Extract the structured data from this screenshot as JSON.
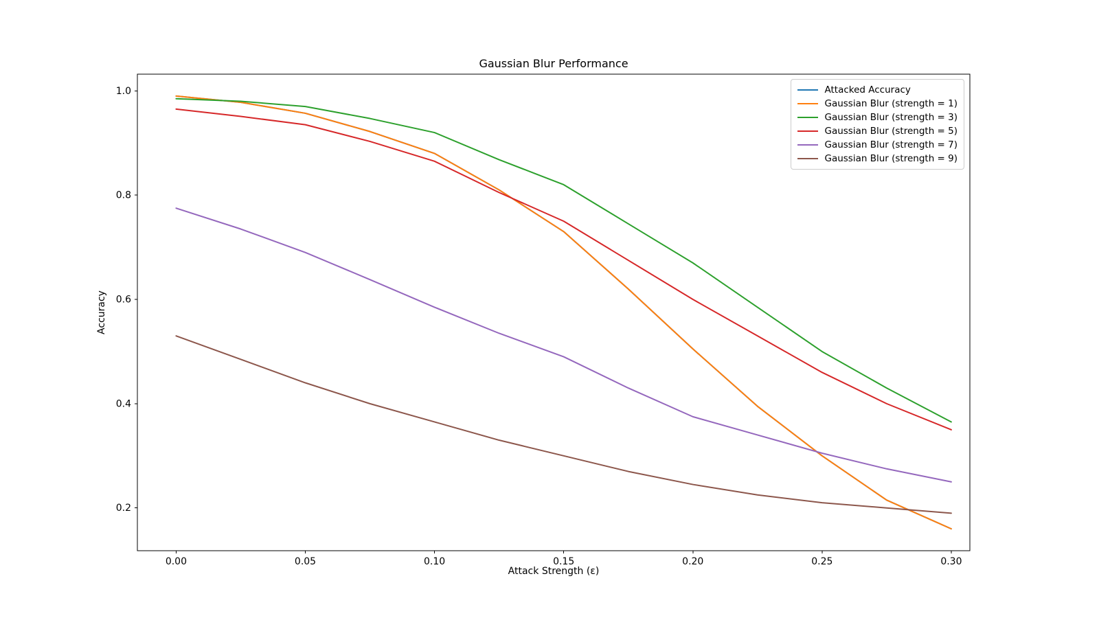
{
  "chart_data": {
    "type": "line",
    "title": "Gaussian Blur Performance",
    "xlabel": "Attack Strength (ε)",
    "ylabel": "Accuracy",
    "grid": false,
    "legend_position": "upper right",
    "xlim": [
      -0.015,
      0.3072
    ],
    "ylim": [
      0.118,
      1.032
    ],
    "xticks": {
      "values": [
        0.0,
        0.05,
        0.1,
        0.15,
        0.2,
        0.25,
        0.3
      ],
      "labels": [
        "0.00",
        "0.05",
        "0.10",
        "0.15",
        "0.20",
        "0.25",
        "0.30"
      ]
    },
    "yticks": {
      "values": [
        0.2,
        0.4,
        0.6,
        0.8,
        1.0
      ],
      "labels": [
        "0.2",
        "0.4",
        "0.6",
        "0.8",
        "1.0"
      ]
    },
    "x": [
      0.0,
      0.025,
      0.05,
      0.075,
      0.1,
      0.125,
      0.15,
      0.175,
      0.2,
      0.225,
      0.25,
      0.275,
      0.3
    ],
    "series": [
      {
        "name": "Attacked Accuracy",
        "color": "#1f77b4",
        "values": [
          0.99,
          0.978,
          0.957,
          0.922,
          0.88,
          0.81,
          0.73,
          0.62,
          0.505,
          0.395,
          0.3,
          0.215,
          0.16
        ]
      },
      {
        "name": "Gaussian Blur (strength = 1)",
        "color": "#ff7f0e",
        "values": [
          0.99,
          0.978,
          0.957,
          0.922,
          0.88,
          0.81,
          0.73,
          0.62,
          0.505,
          0.395,
          0.3,
          0.215,
          0.16
        ]
      },
      {
        "name": "Gaussian Blur (strength = 3)",
        "color": "#2ca02c",
        "values": [
          0.985,
          0.98,
          0.97,
          0.947,
          0.92,
          0.868,
          0.82,
          0.745,
          0.67,
          0.585,
          0.5,
          0.43,
          0.365
        ]
      },
      {
        "name": "Gaussian Blur (strength = 5)",
        "color": "#d62728",
        "values": [
          0.965,
          0.951,
          0.935,
          0.903,
          0.865,
          0.805,
          0.75,
          0.675,
          0.6,
          0.53,
          0.46,
          0.4,
          0.35
        ]
      },
      {
        "name": "Gaussian Blur (strength = 7)",
        "color": "#9467bd",
        "values": [
          0.775,
          0.735,
          0.69,
          0.638,
          0.585,
          0.535,
          0.49,
          0.43,
          0.375,
          0.34,
          0.305,
          0.275,
          0.25
        ]
      },
      {
        "name": "Gaussian Blur (strength = 9)",
        "color": "#8c564b",
        "values": [
          0.53,
          0.485,
          0.44,
          0.4,
          0.365,
          0.33,
          0.3,
          0.27,
          0.245,
          0.225,
          0.21,
          0.2,
          0.19
        ]
      }
    ]
  }
}
